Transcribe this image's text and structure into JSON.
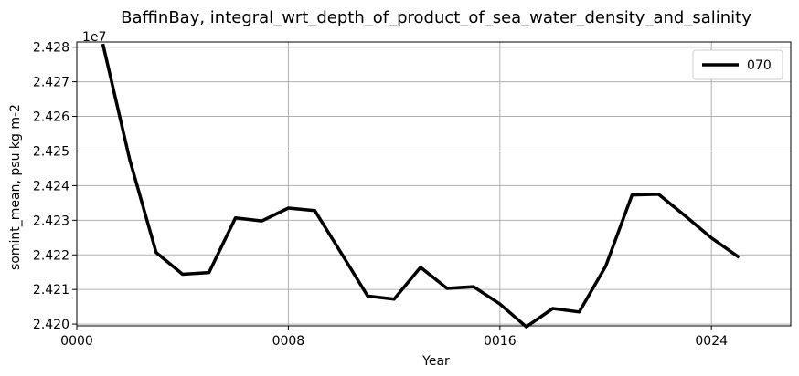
{
  "chart_data": {
    "type": "line",
    "title": "BaffinBay, integral_wrt_depth_of_product_of_sea_water_density_and_salinity",
    "xlabel": "Year",
    "ylabel": "somint_mean, psu kg m-2",
    "offset_text": "1e7",
    "xlim": [
      0,
      27
    ],
    "ylim": [
      2.41995,
      2.42815
    ],
    "x_ticks": [
      0,
      8,
      16,
      24
    ],
    "x_tick_labels": [
      "0000",
      "0008",
      "0016",
      "0024"
    ],
    "y_ticks": [
      2.42,
      2.421,
      2.422,
      2.423,
      2.424,
      2.425,
      2.426,
      2.427,
      2.428
    ],
    "y_tick_labels": [
      "2.420",
      "2.421",
      "2.422",
      "2.423",
      "2.424",
      "2.425",
      "2.426",
      "2.427",
      "2.428"
    ],
    "grid": true,
    "legend_position": "top-right",
    "series": [
      {
        "name": "070",
        "color": "#000000",
        "x": [
          1,
          2,
          3,
          4,
          5,
          6,
          7,
          8,
          9,
          10,
          11,
          12,
          13,
          14,
          15,
          16,
          17,
          18,
          19,
          20,
          21,
          22,
          23,
          24,
          25
        ],
        "values": [
          2.42805,
          2.42475,
          2.42207,
          2.42144,
          2.42149,
          2.42307,
          2.42298,
          2.42335,
          2.42328,
          2.42205,
          2.42081,
          2.42072,
          2.42164,
          2.42103,
          2.42108,
          2.42058,
          2.41992,
          2.42045,
          2.42035,
          2.42167,
          2.42373,
          2.42375,
          2.42313,
          2.42249,
          2.42195
        ]
      }
    ]
  }
}
